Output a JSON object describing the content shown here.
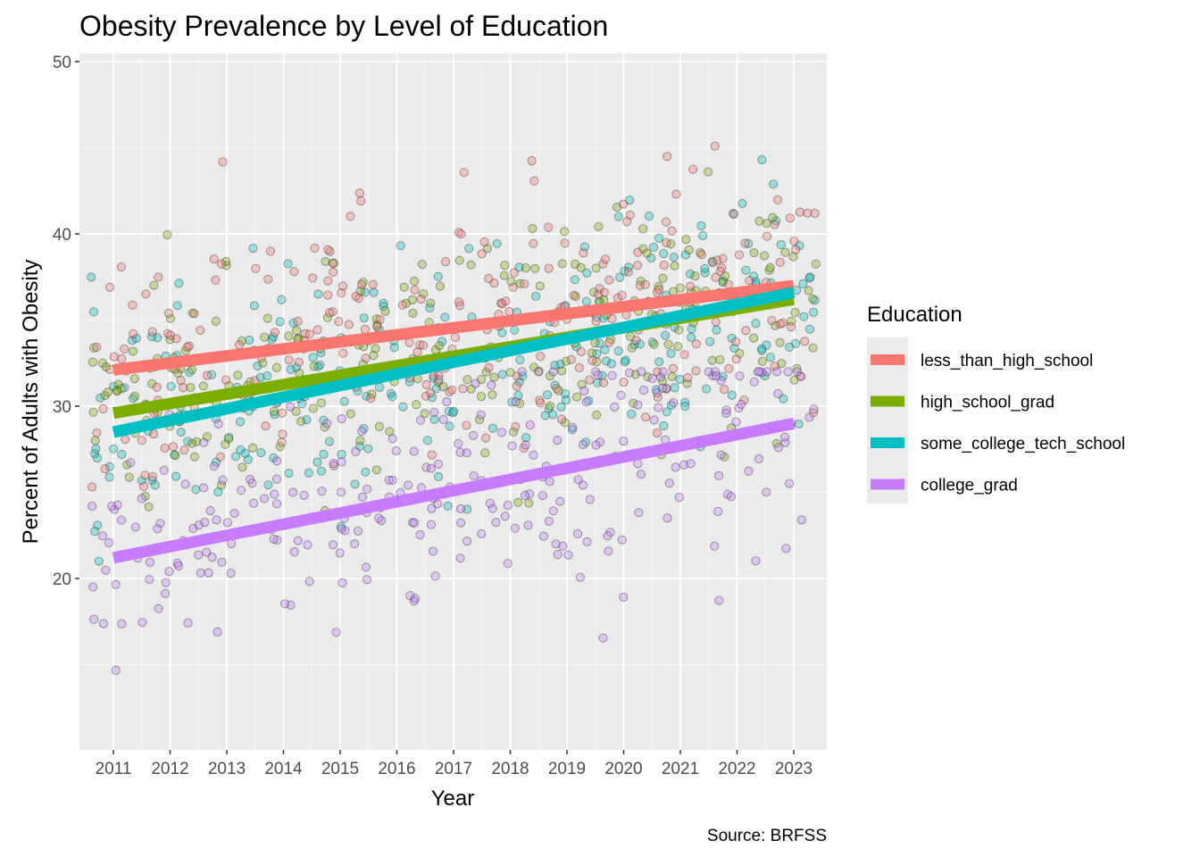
{
  "chart_data": {
    "type": "scatter",
    "title": "Obesity Prevalence by Level of Education",
    "xlabel": "Year",
    "ylabel": "Percent of Adults with Obesity",
    "caption": "Source: BRFSS",
    "xlim": [
      2010.6,
      2023.6
    ],
    "ylim": [
      10,
      51
    ],
    "x_ticks": [
      2011,
      2012,
      2013,
      2014,
      2015,
      2016,
      2017,
      2018,
      2019,
      2020,
      2021,
      2022,
      2023
    ],
    "y_ticks": [
      20,
      30,
      40,
      50
    ],
    "grid": true,
    "legend": {
      "title": "Education",
      "position": "right"
    },
    "series": [
      {
        "name": "less_than_high_school",
        "color": "#F8766D",
        "trend": {
          "x": [
            2011,
            2023
          ],
          "y": [
            32.1,
            37.0
          ]
        },
        "points": {
          "x_range": [
            2010.6,
            2023.4
          ],
          "y_range": [
            19,
            48.6
          ],
          "center": [
            32,
            37
          ],
          "spread": 3.6
        }
      },
      {
        "name": "high_school_grad",
        "color": "#7CAE00",
        "trend": {
          "x": [
            2011,
            2023
          ],
          "y": [
            29.6,
            36.2
          ]
        },
        "points": {
          "x_range": [
            2010.6,
            2023.4
          ],
          "y_range": [
            22,
            43.6
          ],
          "center": [
            29.6,
            36.2
          ],
          "spread": 3.2
        }
      },
      {
        "name": "some_college_tech_school",
        "color": "#00BFC4",
        "trend": {
          "x": [
            2011,
            2023
          ],
          "y": [
            28.5,
            36.6
          ]
        },
        "points": {
          "x_range": [
            2010.6,
            2023.4
          ],
          "y_range": [
            21,
            44.3
          ],
          "center": [
            28.5,
            36.6
          ],
          "spread": 3.4
        }
      },
      {
        "name": "college_grad",
        "color": "#C77CFF",
        "trend": {
          "x": [
            2011,
            2023
          ],
          "y": [
            21.2,
            29.0
          ]
        },
        "points": {
          "x_range": [
            2010.6,
            2023.4
          ],
          "y_range": [
            11.9,
            32
          ],
          "center": [
            21.2,
            29.0
          ],
          "spread": 3.6
        }
      }
    ]
  }
}
